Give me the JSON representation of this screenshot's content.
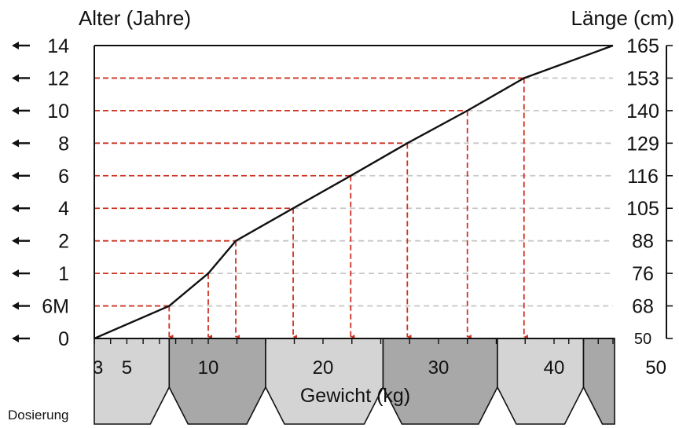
{
  "chart_data": {
    "type": "line",
    "title": "",
    "ylabel_left": "Alter (Jahre)",
    "ylabel_right": "Länge (cm)",
    "xlabel": "Gewicht (kg)",
    "footer_label": "Dosierung",
    "age_labels": [
      "0",
      "6M",
      "1",
      "2",
      "4",
      "6",
      "8",
      "10",
      "12",
      "14"
    ],
    "height_labels": [
      "50",
      "68",
      "76",
      "88",
      "105",
      "116",
      "129",
      "140",
      "153",
      "165"
    ],
    "weight_ticks": [
      "3",
      "5",
      "10",
      "20",
      "30",
      "40",
      "50"
    ],
    "series": [
      {
        "points": [
          {
            "age": "0",
            "height": 50,
            "weight": 3
          },
          {
            "age": "6M",
            "height": 68,
            "weight": 7.6
          },
          {
            "age": "1",
            "height": 76,
            "weight": 10
          },
          {
            "age": "2",
            "height": 88,
            "weight": 12.4
          },
          {
            "age": "4",
            "height": 105,
            "weight": 17.4
          },
          {
            "age": "6",
            "height": 116,
            "weight": 22.4
          },
          {
            "age": "8",
            "height": 129,
            "weight": 27.3
          },
          {
            "age": "10",
            "height": 140,
            "weight": 32.5
          },
          {
            "age": "12",
            "height": 153,
            "weight": 37.4
          },
          {
            "age": "14",
            "height": 165,
            "weight": 50
          }
        ]
      }
    ],
    "dosing_bands": [
      {
        "from": 3,
        "to": 7.6,
        "shade": "light"
      },
      {
        "from": 7.6,
        "to": 15,
        "shade": "dark"
      },
      {
        "from": 15,
        "to": 25.2,
        "shade": "light"
      },
      {
        "from": 25.2,
        "to": 35.1,
        "shade": "dark"
      },
      {
        "from": 35.1,
        "to": 45,
        "shade": "light"
      },
      {
        "from": 45,
        "to": 50,
        "shade": "dark"
      }
    ],
    "colors": {
      "line": "#111111",
      "guide": "#cc3322",
      "grid": "#c8c8c8",
      "band_light": "#d4d4d4",
      "band_dark": "#a8a8a8"
    },
    "grid": true
  }
}
